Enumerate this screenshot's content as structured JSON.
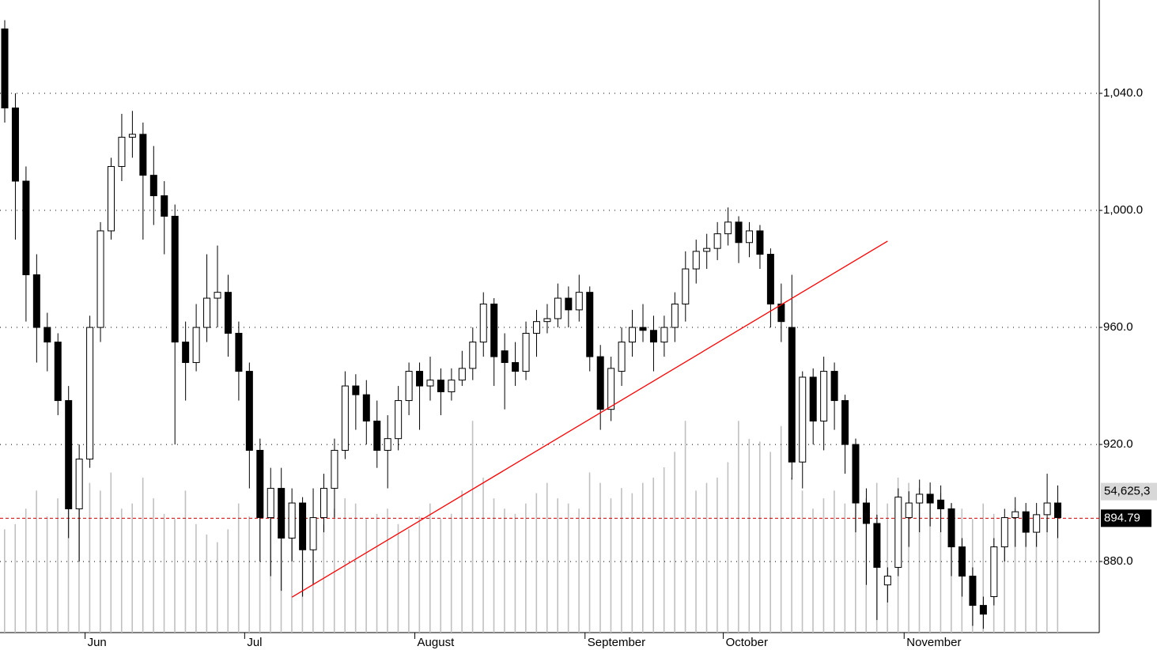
{
  "chart_data": {
    "type": "candlestick",
    "categories": [
      null,
      null,
      null,
      null,
      null,
      null,
      null,
      null,
      "Jun",
      null,
      null,
      null,
      null,
      null,
      null,
      null,
      null,
      null,
      null,
      null,
      null,
      null,
      null,
      "Jul",
      null,
      null,
      null,
      null,
      null,
      null,
      null,
      null,
      null,
      null,
      null,
      null,
      null,
      null,
      null,
      "August",
      null,
      null,
      null,
      null,
      null,
      null,
      null,
      null,
      null,
      null,
      null,
      null,
      null,
      null,
      null,
      "September",
      null,
      null,
      null,
      null,
      null,
      null,
      null,
      null,
      null,
      null,
      null,
      null,
      "October",
      null,
      null,
      null,
      null,
      null,
      null,
      null,
      null,
      null,
      null,
      null,
      null,
      null,
      null,
      null,
      null,
      "November",
      null,
      null,
      null,
      null,
      null,
      null,
      null,
      null,
      null,
      null,
      null,
      null,
      null,
      null
    ],
    "open": [
      1062,
      1035,
      1010,
      978,
      960,
      955,
      935,
      898,
      915,
      960,
      993,
      1015,
      1025,
      1026,
      1012,
      1005,
      998,
      955,
      948,
      960,
      970,
      972,
      958,
      945,
      918,
      895,
      905,
      888,
      900,
      884,
      895,
      905,
      918,
      940,
      937,
      928,
      918,
      922,
      935,
      945,
      940,
      942,
      938,
      942,
      946,
      955,
      968,
      952,
      948,
      945,
      958,
      962,
      963,
      970,
      966,
      972,
      950,
      932,
      945,
      955,
      960,
      959,
      955,
      960,
      968,
      980,
      986,
      987,
      992,
      996,
      989,
      993,
      985,
      968,
      960,
      914,
      943,
      928,
      945,
      935,
      920,
      900,
      893,
      872,
      878,
      895,
      900,
      903,
      901,
      898,
      885,
      875,
      865,
      868,
      885,
      895,
      897,
      890,
      896,
      900
    ],
    "high": [
      1065,
      1040,
      1015,
      985,
      965,
      958,
      940,
      920,
      964,
      996,
      1018,
      1033,
      1034,
      1030,
      1022,
      1010,
      1002,
      962,
      968,
      985,
      988,
      978,
      962,
      948,
      922,
      912,
      912,
      905,
      902,
      905,
      910,
      922,
      945,
      944,
      942,
      935,
      930,
      940,
      948,
      948,
      950,
      946,
      946,
      952,
      960,
      972,
      970,
      958,
      955,
      962,
      966,
      968,
      975,
      974,
      978,
      974,
      954,
      950,
      960,
      966,
      968,
      964,
      964,
      972,
      986,
      990,
      992,
      996,
      1001,
      998,
      996,
      995,
      987,
      975,
      978,
      945,
      946,
      950,
      948,
      937,
      922,
      905,
      896,
      878,
      905,
      904,
      908,
      907,
      906,
      900,
      888,
      878,
      868,
      888,
      898,
      902,
      900,
      900,
      910,
      906
    ],
    "low": [
      1030,
      990,
      962,
      948,
      945,
      930,
      888,
      880,
      912,
      955,
      990,
      1010,
      1018,
      990,
      995,
      985,
      920,
      935,
      945,
      955,
      960,
      950,
      935,
      905,
      880,
      875,
      870,
      880,
      868,
      872,
      890,
      895,
      915,
      925,
      920,
      912,
      905,
      918,
      930,
      925,
      935,
      930,
      935,
      940,
      942,
      950,
      940,
      932,
      940,
      942,
      950,
      958,
      960,
      960,
      962,
      945,
      925,
      928,
      940,
      950,
      955,
      945,
      950,
      955,
      962,
      975,
      980,
      983,
      988,
      982,
      984,
      980,
      960,
      955,
      908,
      905,
      920,
      918,
      925,
      910,
      890,
      872,
      860,
      866,
      875,
      885,
      890,
      892,
      890,
      875,
      868,
      858,
      857,
      865,
      880,
      885,
      885,
      885,
      890,
      888
    ],
    "close": [
      1035,
      1010,
      978,
      960,
      955,
      935,
      898,
      915,
      960,
      993,
      1015,
      1025,
      1026,
      1012,
      1005,
      998,
      955,
      948,
      960,
      970,
      972,
      958,
      945,
      918,
      895,
      905,
      888,
      900,
      884,
      895,
      905,
      918,
      940,
      937,
      928,
      918,
      922,
      935,
      945,
      940,
      942,
      938,
      942,
      946,
      955,
      968,
      950,
      948,
      945,
      958,
      962,
      963,
      970,
      966,
      972,
      950,
      932,
      946,
      955,
      960,
      959,
      955,
      960,
      968,
      980,
      986,
      987,
      992,
      996,
      989,
      993,
      985,
      968,
      962,
      914,
      943,
      928,
      945,
      935,
      920,
      900,
      893,
      878,
      875,
      902,
      900,
      903,
      900,
      898,
      885,
      875,
      865,
      862,
      885,
      895,
      897,
      890,
      896,
      900,
      895
    ],
    "volume": [
      40000000,
      42000000,
      48000000,
      55000000,
      45000000,
      52000000,
      68000000,
      60000000,
      58000000,
      55000000,
      62000000,
      48000000,
      50000000,
      60000000,
      52000000,
      46000000,
      44000000,
      55000000,
      42000000,
      38000000,
      35000000,
      40000000,
      50000000,
      45000000,
      55000000,
      50000000,
      46000000,
      38000000,
      44000000,
      40000000,
      42000000,
      48000000,
      52000000,
      50000000,
      44000000,
      46000000,
      48000000,
      42000000,
      40000000,
      45000000,
      50000000,
      44000000,
      46000000,
      55000000,
      82000000,
      60000000,
      52000000,
      48000000,
      46000000,
      50000000,
      54000000,
      58000000,
      52000000,
      50000000,
      48000000,
      62000000,
      58000000,
      52000000,
      56000000,
      54000000,
      58000000,
      60000000,
      64000000,
      70000000,
      82000000,
      55000000,
      58000000,
      60000000,
      66000000,
      82000000,
      75000000,
      74000000,
      70000000,
      80000000,
      60000000,
      55000000,
      48000000,
      52000000,
      55000000,
      50000000,
      56000000,
      52000000,
      58000000,
      50000000,
      60000000,
      58000000,
      56000000,
      52000000,
      54000000,
      50000000,
      48000000,
      44000000,
      50000000,
      46000000,
      42000000,
      48000000,
      40000000,
      38000000,
      44000000,
      50000000
    ],
    "up_color": "#ffffff",
    "down_color": "#000000",
    "volume_color": "#c0c0c0",
    "ylim": [
      855.7,
      1071.9
    ],
    "yticks": [
      {
        "value": 880,
        "label": "880.0"
      },
      {
        "value": 920,
        "label": "920.0"
      },
      {
        "value": 960,
        "label": "960.0"
      },
      {
        "value": 1000,
        "label": "1,000.0"
      },
      {
        "value": 1040,
        "label": "1,040.0"
      }
    ],
    "vlim": [
      0,
      245000000
    ],
    "volume_marker": {
      "value": 54625300,
      "label": "54,625,3"
    },
    "last_price": 894.79,
    "trendline": {
      "x": [
        27,
        83
      ],
      "y": [
        867.8,
        989.5
      ],
      "color": "#ff0000"
    },
    "grid": true
  }
}
